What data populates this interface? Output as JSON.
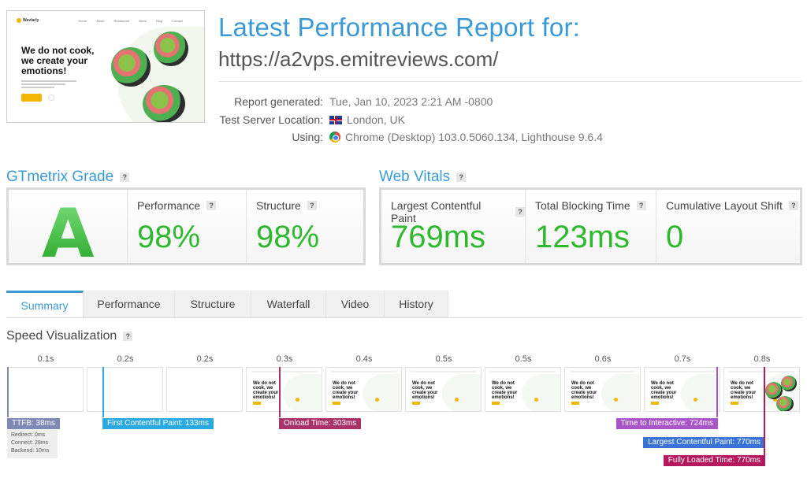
{
  "header": {
    "title": "Latest Performance Report for:",
    "url": "https://a2vps.emitreviews.com/",
    "meta": [
      {
        "key": "Report generated:",
        "value": "Tue, Jan 10, 2023 2:21 AM -0800"
      },
      {
        "key": "Test Server Location:",
        "value": "London, UK"
      },
      {
        "key": "Using:",
        "value": "Chrome (Desktop) 103.0.5060.134, Lighthouse 9.6.4"
      }
    ]
  },
  "thumbnail": {
    "brand": "Wavlarly",
    "nav": [
      "Home",
      "About",
      "Restaurant",
      "Menu",
      "Blog",
      "Contact"
    ],
    "headline": "We do not cook, we create your emotions!"
  },
  "grade": {
    "heading": "GTmetrix Grade",
    "help": "?",
    "letter": "A",
    "performance_label": "Performance",
    "performance_value": "98%",
    "structure_label": "Structure",
    "structure_value": "98%"
  },
  "vitals": {
    "heading": "Web Vitals",
    "help": "?",
    "lcp_label": "Largest Contentful Paint",
    "lcp_value": "769ms",
    "tbt_label": "Total Blocking Time",
    "tbt_value": "123ms",
    "cls_label": "Cumulative Layout Shift",
    "cls_value": "0"
  },
  "tabs": [
    "Summary",
    "Performance",
    "Structure",
    "Waterfall",
    "Video",
    "History"
  ],
  "speed": {
    "heading": "Speed Visualization",
    "help": "?",
    "time_labels": [
      "0.1s",
      "0.2s",
      "0.2s",
      "0.3s",
      "0.4s",
      "0.5s",
      "0.5s",
      "0.6s",
      "0.7s",
      "0.8s"
    ],
    "frame_headline": "We do not cook, we create your emotions!",
    "markers": {
      "ttfb": "TTFB: 38ms",
      "fcp": "First Contentful Paint: 133ms",
      "onload": "Onload Time: 303ms",
      "tti": "Time to Interactive: 724ms",
      "lcp": "Largest Contentful Paint: 770ms",
      "fully": "Fully Loaded Time: 770ms"
    },
    "ttfb_details": [
      "Redirect: 0ms",
      "Connect: 28ms",
      "Backend: 10ms"
    ]
  },
  "colors": {
    "accent": "#3b99d6",
    "good": "#2eb82e",
    "ttfb": "#7f89b5",
    "fcp": "#2aa8e0",
    "onload": "#a8336b",
    "tti": "#a855c8",
    "lcp": "#3a73d6",
    "fully": "#b3195c"
  }
}
